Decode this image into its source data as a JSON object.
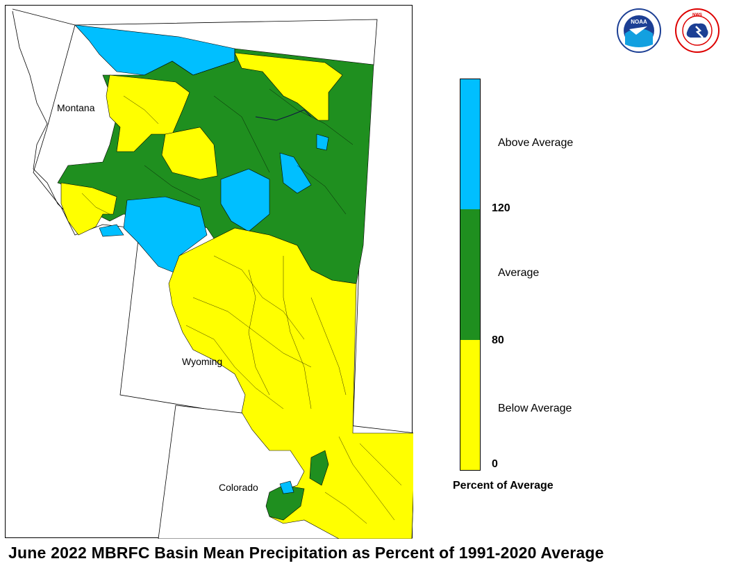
{
  "title": "June 2022 MBRFC Basin Mean Precipitation as Percent of 1991-2020 Average",
  "map": {
    "state_labels": [
      "Montana",
      "Wyoming",
      "Colorado"
    ]
  },
  "legend": {
    "title": "Percent of Average",
    "classes": [
      {
        "label": "Above Average",
        "color": "#00bfff",
        "range": [
          120,
          null
        ]
      },
      {
        "label": "Average",
        "color": "#1f8f1f",
        "range": [
          80,
          120
        ]
      },
      {
        "label": "Below Average",
        "color": "#ffff00",
        "range": [
          0,
          80
        ]
      }
    ],
    "ticks": [
      "120",
      "80",
      "0"
    ]
  },
  "logos": {
    "noaa": {
      "text": "NOAA",
      "ring_text": "NATIONAL OCEANIC AND ATMOSPHERIC ADMINISTRATION · U.S. DEPARTMENT OF COMMERCE"
    },
    "nws": {
      "ring_text": "NATIONAL WEATHER SERVICE"
    }
  },
  "colors": {
    "above": "#00bfff",
    "average": "#1f8f1f",
    "below": "#ffff00",
    "boundary": "#000000"
  }
}
